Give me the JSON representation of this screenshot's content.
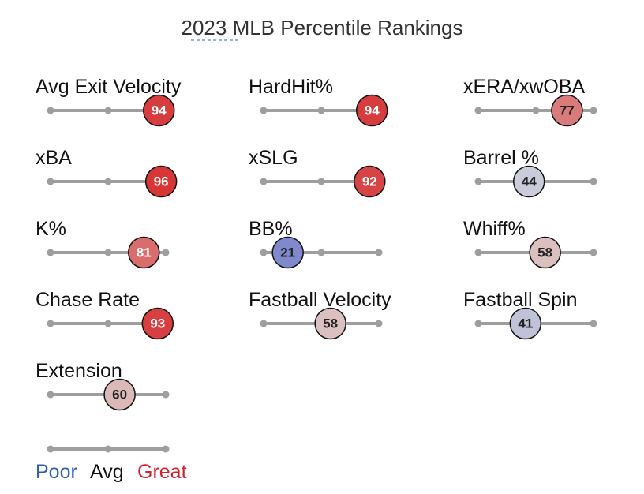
{
  "chart_data": {
    "type": "percentile-rankings",
    "title": "2023 MLB Percentile Rankings",
    "scale": {
      "min": 0,
      "avg": 50,
      "max": 100
    },
    "metrics": [
      {
        "label": "Avg Exit Velocity",
        "value": 94
      },
      {
        "label": "HardHit%",
        "value": 94
      },
      {
        "label": "xERA/xwOBA",
        "value": 77
      },
      {
        "label": "xBA",
        "value": 96
      },
      {
        "label": "xSLG",
        "value": 92
      },
      {
        "label": "Barrel %",
        "value": 44
      },
      {
        "label": "K%",
        "value": 81
      },
      {
        "label": "BB%",
        "value": 21
      },
      {
        "label": "Whiff%",
        "value": 58
      },
      {
        "label": "Chase Rate",
        "value": 93
      },
      {
        "label": "Fastball Velocity",
        "value": 58
      },
      {
        "label": "Fastball Spin",
        "value": 41
      },
      {
        "label": "Extension",
        "value": 60
      }
    ],
    "legend": {
      "poor": "Poor",
      "avg": "Avg",
      "great": "Great",
      "poor_color": "#2f5fa7",
      "avg_color": "#111111",
      "great_color": "#d3212d"
    }
  }
}
